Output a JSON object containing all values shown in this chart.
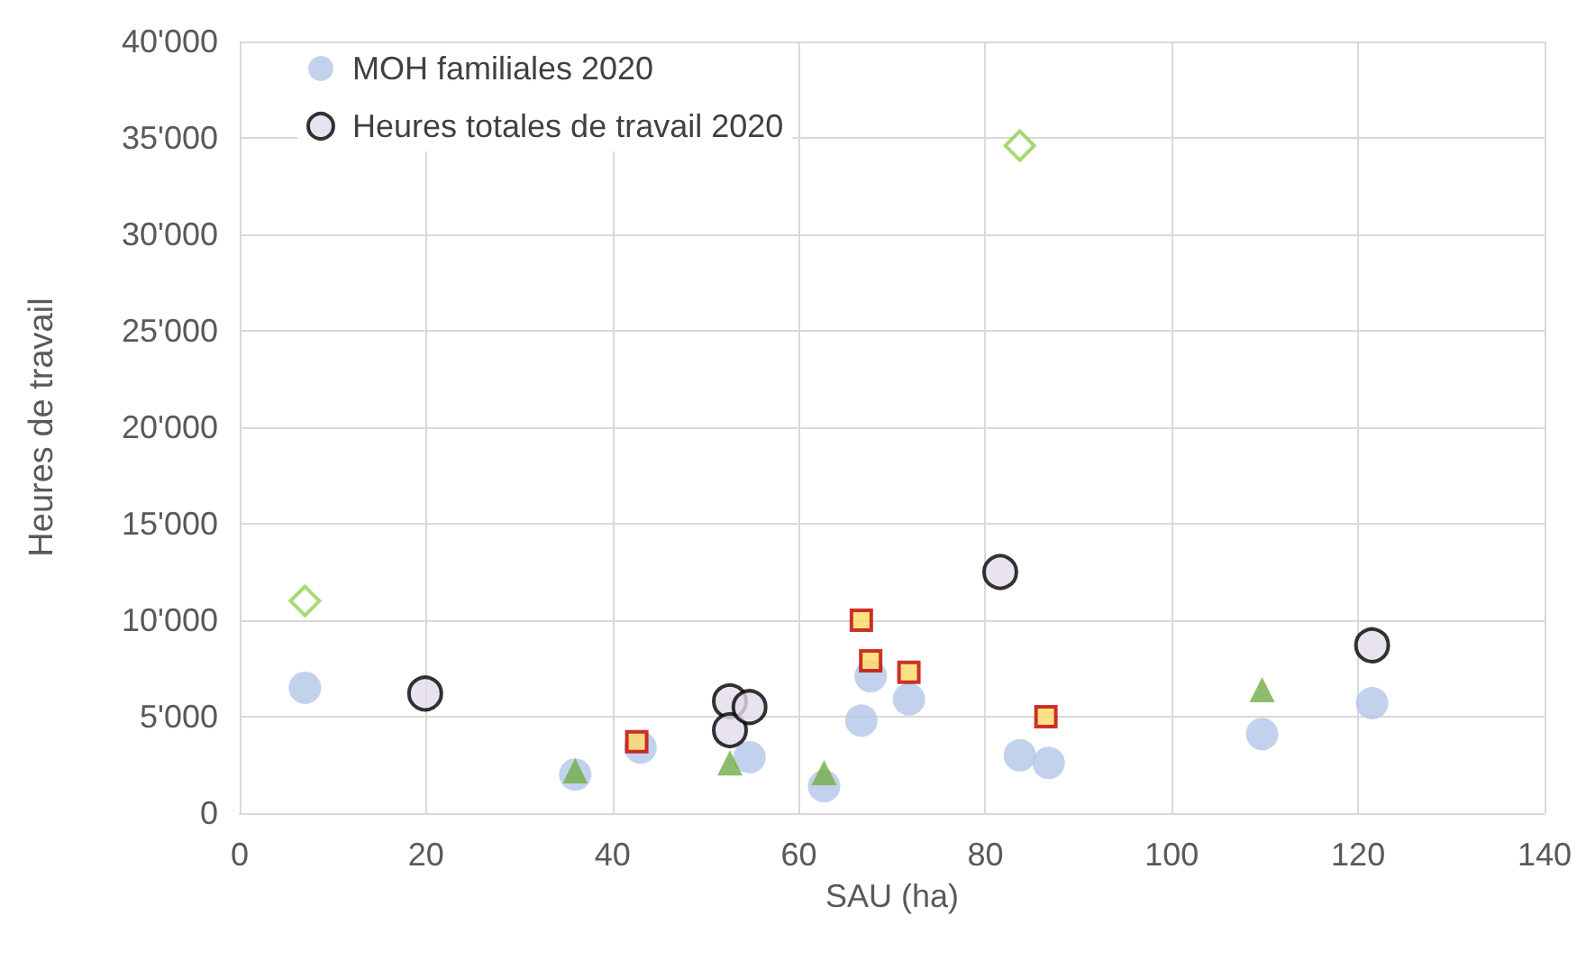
{
  "chart_data": {
    "type": "scatter",
    "xlabel": "SAU (ha)",
    "ylabel": "Heures de travail",
    "xlim": [
      0,
      140
    ],
    "xticks": [
      0,
      20,
      40,
      60,
      80,
      100,
      120,
      140
    ],
    "ylim": [
      0,
      40000
    ],
    "yticks": [
      {
        "value": 0,
        "label": "0"
      },
      {
        "value": 5000,
        "label": "5'000"
      },
      {
        "value": 10000,
        "label": "10'000"
      },
      {
        "value": 15000,
        "label": "15'000"
      },
      {
        "value": 20000,
        "label": "20'000"
      },
      {
        "value": 25000,
        "label": "25'000"
      },
      {
        "value": 30000,
        "label": "30'000"
      },
      {
        "value": 35000,
        "label": "35'000"
      },
      {
        "value": 40000,
        "label": "40'000"
      }
    ],
    "grid": true,
    "legend": "top left",
    "series": [
      {
        "name": "MOH familiales 2020",
        "color": "#b4c7e7",
        "marker": "circle",
        "x": [
          7,
          36,
          43,
          54.7,
          62.7,
          66.7,
          67.7,
          71.8,
          83.7,
          86.8,
          109.7,
          121.5
        ],
        "values": [
          6500,
          2000,
          3400,
          2900,
          1400,
          4800,
          7100,
          5900,
          3000,
          2600,
          4100,
          5700
        ]
      },
      {
        "name": "Heures totales de travail 2020",
        "color": "#e2dcea",
        "marker": "circle",
        "x": [
          19.9,
          52.6,
          52.6,
          54.7,
          81.6,
          121.5
        ],
        "values": [
          6200,
          5800,
          4300,
          5500,
          12500,
          8700
        ]
      },
      {
        "color": "#ffd966",
        "marker": "square",
        "x": [
          42.6,
          66.7,
          67.7,
          71.8,
          86.5
        ],
        "values": [
          3700,
          10000,
          7900,
          7300,
          5000
        ]
      },
      {
        "color": "#70ad47",
        "marker": "triangle",
        "x": [
          36,
          52.6,
          62.7,
          109.7
        ],
        "values": [
          2200,
          2600,
          2100,
          6400
        ]
      },
      {
        "color": "#92d050",
        "marker": "diamond",
        "x": [
          7,
          83.7
        ],
        "values": [
          11000,
          34600
        ]
      }
    ]
  }
}
